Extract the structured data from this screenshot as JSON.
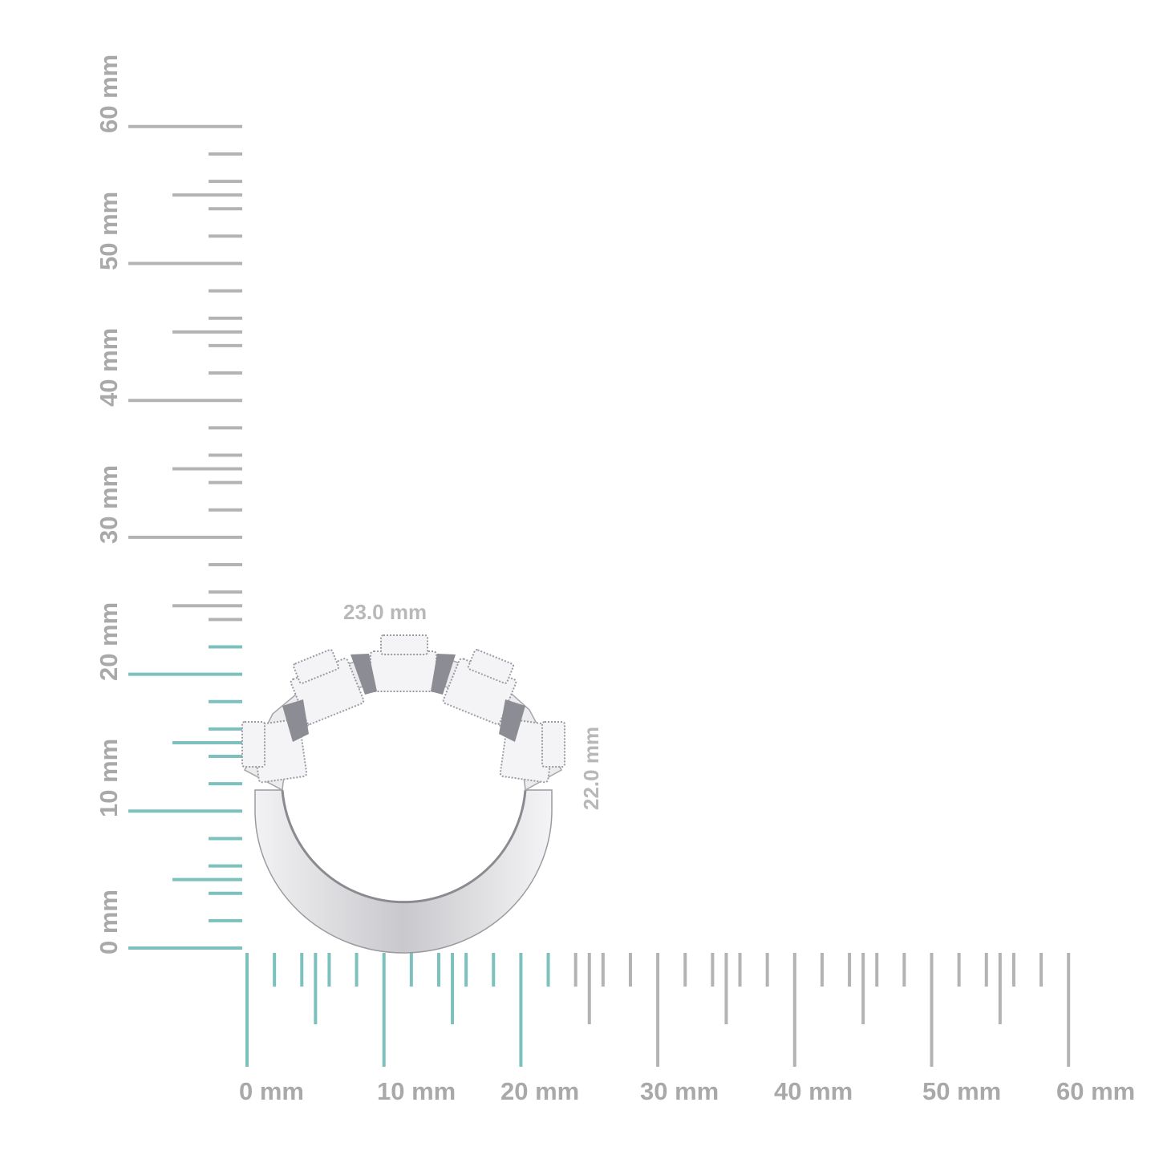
{
  "rulers": {
    "unit": "mm",
    "max_mm": 60,
    "highlight_color": "#7cc1bd",
    "base_color": "#b3b3b3",
    "vertical": {
      "highlight_to_mm": 22,
      "labels": [
        "0 mm",
        "10 mm",
        "20 mm",
        "30 mm",
        "40 mm",
        "50 mm",
        "60 mm"
      ]
    },
    "horizontal": {
      "highlight_to_mm": 23,
      "labels": [
        "0 mm",
        "10 mm",
        "20 mm",
        "30 mm",
        "40 mm",
        "50 mm",
        "60 mm"
      ]
    }
  },
  "dimensions": {
    "width": "23.0 mm",
    "height": "22.0 mm"
  },
  "product": {
    "icon": "ring-image"
  }
}
